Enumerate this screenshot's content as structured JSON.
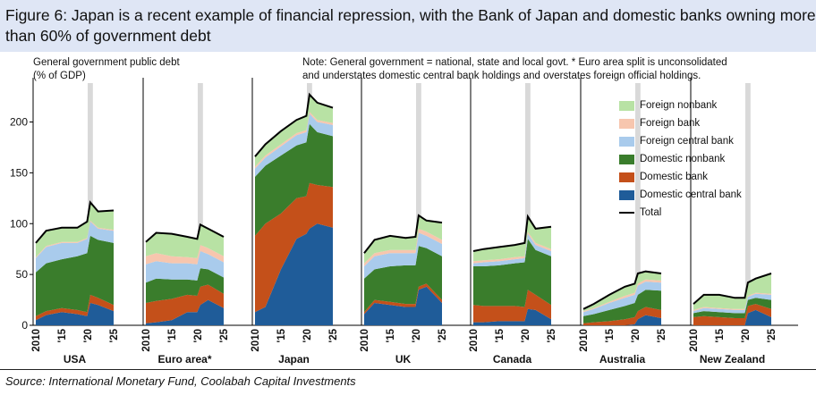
{
  "title": "Figure 6: Japan is a recent example of financial repression, with the Bank of Japan and domestic banks owning more than 60% of government debt",
  "y_label_line1": "General government public debt",
  "y_label_line2": "(% of GDP)",
  "note_line1": "Note: General government = national, state and local govt. * Euro area split is unconsolidated",
  "note_line2": "and understates domestic central bank holdings and overstates foreign official holdings.",
  "source": "Source: International Monetary Fund, Coolabah Capital Investments",
  "colors": {
    "domestic_central_bank": "#1f5c99",
    "domestic_bank": "#c4501a",
    "domestic_nonbank": "#3a7d2c",
    "foreign_central_bank": "#a9cbec",
    "foreign_bank": "#f7c6ae",
    "foreign_nonbank": "#b8e2a4",
    "total": "#000000",
    "shade": "#d9d9d9"
  },
  "legend": [
    {
      "key": "foreign_nonbank",
      "label": "Foreign nonbank"
    },
    {
      "key": "foreign_bank",
      "label": "Foreign bank"
    },
    {
      "key": "foreign_central_bank",
      "label": "Foreign central bank"
    },
    {
      "key": "domestic_nonbank",
      "label": "Domestic nonbank"
    },
    {
      "key": "domestic_bank",
      "label": "Domestic bank"
    },
    {
      "key": "domestic_central_bank",
      "label": "Domestic central bank"
    },
    {
      "key": "total",
      "label": "Total",
      "line": true
    }
  ],
  "chart_data": {
    "type": "area",
    "stacked": true,
    "ylim": [
      0,
      240
    ],
    "yticks": [
      0,
      50,
      100,
      150,
      200
    ],
    "x_range": [
      2010,
      2025
    ],
    "xticks": [
      "2010",
      "'15",
      "'20",
      "'25"
    ],
    "shaded_period": [
      2020,
      2021
    ],
    "grid": false,
    "legend_position": "right",
    "series_names": [
      "Domestic central bank",
      "Domestic bank",
      "Domestic nonbank",
      "Foreign central bank",
      "Foreign bank",
      "Foreign nonbank"
    ],
    "panels": [
      {
        "name": "USA",
        "x": [
          2010,
          2012,
          2015,
          2018,
          2019.9,
          2020.5,
          2022,
          2025
        ],
        "series": {
          "domestic_central_bank": [
            5,
            10,
            13,
            11,
            9,
            22,
            20,
            14
          ],
          "domestic_bank": [
            4,
            4,
            4,
            4,
            4,
            8,
            7,
            6
          ],
          "domestic_nonbank": [
            43,
            47,
            48,
            53,
            58,
            58,
            57,
            61
          ],
          "foreign_central_bank": [
            14,
            16,
            16,
            13,
            14,
            14,
            11,
            12
          ],
          "foreign_bank": [
            1,
            1,
            1,
            1,
            1,
            1,
            1,
            1
          ],
          "foreign_nonbank": [
            14,
            15,
            14,
            14,
            16,
            18,
            16,
            19
          ]
        }
      },
      {
        "name": "Euro area*",
        "x": [
          2010,
          2012,
          2015,
          2018,
          2019.9,
          2020.5,
          2022,
          2025
        ],
        "series": {
          "domestic_central_bank": [
            2,
            3,
            5,
            13,
            13,
            20,
            25,
            17
          ],
          "domestic_bank": [
            20,
            21,
            21,
            17,
            16,
            18,
            15,
            14
          ],
          "domestic_nonbank": [
            20,
            22,
            19,
            15,
            15,
            18,
            15,
            16
          ],
          "foreign_central_bank": [
            18,
            17,
            16,
            16,
            16,
            17,
            15,
            15
          ],
          "foreign_bank": [
            8,
            8,
            7,
            6,
            6,
            6,
            6,
            6
          ],
          "foreign_nonbank": [
            14,
            20,
            22,
            20,
            19,
            20,
            19,
            19
          ]
        }
      },
      {
        "name": "Japan",
        "x": [
          2010,
          2012,
          2015,
          2018,
          2019.9,
          2020.5,
          2022,
          2025
        ],
        "series": {
          "domestic_central_bank": [
            13,
            18,
            55,
            85,
            90,
            95,
            100,
            96
          ],
          "domestic_bank": [
            75,
            82,
            55,
            40,
            37,
            45,
            38,
            40
          ],
          "domestic_nonbank": [
            58,
            57,
            57,
            52,
            53,
            58,
            52,
            50
          ],
          "foreign_central_bank": [
            8,
            8,
            9,
            10,
            10,
            10,
            10,
            11
          ],
          "foreign_bank": [
            2,
            2,
            2,
            2,
            2,
            2,
            2,
            2
          ],
          "foreign_nonbank": [
            10,
            11,
            13,
            13,
            14,
            17,
            17,
            15
          ]
        }
      },
      {
        "name": "UK",
        "x": [
          2010,
          2012,
          2015,
          2018,
          2019.9,
          2020.5,
          2022,
          2025
        ],
        "series": {
          "domestic_central_bank": [
            11,
            22,
            20,
            18,
            18,
            35,
            38,
            22
          ],
          "domestic_bank": [
            2,
            3,
            3,
            3,
            3,
            3,
            3,
            3
          ],
          "domestic_nonbank": [
            33,
            30,
            35,
            38,
            38,
            40,
            35,
            43
          ],
          "foreign_central_bank": [
            12,
            13,
            13,
            12,
            12,
            13,
            12,
            12
          ],
          "foreign_bank": [
            3,
            3,
            3,
            3,
            3,
            4,
            4,
            4
          ],
          "foreign_nonbank": [
            10,
            13,
            14,
            12,
            13,
            13,
            11,
            17
          ]
        }
      },
      {
        "name": "Canada",
        "x": [
          2010,
          2012,
          2015,
          2018,
          2019.9,
          2020.5,
          2022,
          2025
        ],
        "series": {
          "domestic_central_bank": [
            3,
            3,
            4,
            4,
            4,
            16,
            15,
            6
          ],
          "domestic_bank": [
            17,
            16,
            15,
            15,
            14,
            19,
            15,
            14
          ],
          "domestic_nonbank": [
            38,
            39,
            40,
            42,
            44,
            50,
            44,
            48
          ],
          "foreign_central_bank": [
            3,
            4,
            4,
            4,
            4,
            5,
            5,
            5
          ],
          "foreign_bank": [
            2,
            2,
            2,
            2,
            2,
            2,
            2,
            2
          ],
          "foreign_nonbank": [
            10,
            11,
            12,
            12,
            13,
            15,
            14,
            22
          ]
        }
      },
      {
        "name": "Australia",
        "x": [
          2010,
          2012,
          2015,
          2018,
          2019.9,
          2020.5,
          2022,
          2025
        ],
        "series": {
          "domestic_central_bank": [
            0,
            0,
            0,
            0,
            1,
            6,
            10,
            7
          ],
          "domestic_bank": [
            2,
            3,
            4,
            6,
            7,
            8,
            8,
            8
          ],
          "domestic_nonbank": [
            7,
            8,
            11,
            13,
            14,
            16,
            17,
            19
          ],
          "foreign_central_bank": [
            4,
            5,
            7,
            8,
            8,
            9,
            8,
            8
          ],
          "foreign_bank": [
            1,
            1,
            1,
            2,
            2,
            2,
            2,
            2
          ],
          "foreign_nonbank": [
            2,
            4,
            7,
            9,
            9,
            10,
            8,
            7
          ]
        }
      },
      {
        "name": "New Zealand",
        "x": [
          2010,
          2012,
          2015,
          2018,
          2019.9,
          2020.5,
          2022,
          2025
        ],
        "series": {
          "domestic_central_bank": [
            0,
            0,
            0,
            0,
            0,
            12,
            15,
            8
          ],
          "domestic_bank": [
            8,
            9,
            8,
            7,
            7,
            7,
            6,
            8
          ],
          "domestic_nonbank": [
            4,
            5,
            5,
            5,
            5,
            6,
            6,
            9
          ],
          "foreign_central_bank": [
            2,
            3,
            3,
            3,
            3,
            3,
            4,
            5
          ],
          "foreign_bank": [
            1,
            1,
            1,
            1,
            1,
            1,
            1,
            1
          ],
          "foreign_nonbank": [
            6,
            12,
            13,
            11,
            11,
            13,
            14,
            20
          ]
        }
      }
    ]
  }
}
